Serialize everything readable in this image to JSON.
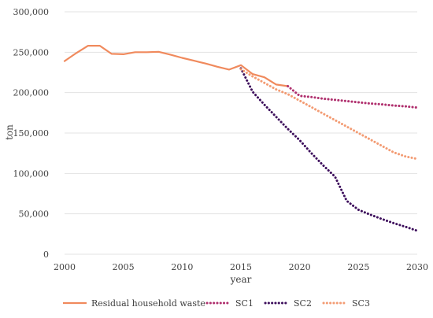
{
  "chart_data": {
    "type": "line",
    "title": "",
    "xlabel": "year",
    "ylabel": "ton",
    "xlim": [
      2000,
      2030
    ],
    "ylim": [
      0,
      300000
    ],
    "x_ticks": [
      "2000",
      "2005",
      "2010",
      "2015",
      "2020",
      "2025",
      "2030"
    ],
    "y_ticks": [
      "0",
      "50,000",
      "100,000",
      "150,000",
      "200,000",
      "250,000",
      "300,000"
    ],
    "grid": "horizontal",
    "legend_position": "bottom",
    "series": [
      {
        "name": "Residual household waste",
        "color": "#f08a5d",
        "style": "solid",
        "points": [
          [
            2000,
            239000
          ],
          [
            2001,
            249000
          ],
          [
            2002,
            258000
          ],
          [
            2003,
            258000
          ],
          [
            2004,
            248000
          ],
          [
            2005,
            247500
          ],
          [
            2006,
            250000
          ],
          [
            2007,
            250000
          ],
          [
            2008,
            250500
          ],
          [
            2009,
            247000
          ],
          [
            2010,
            243000
          ],
          [
            2011,
            239500
          ],
          [
            2012,
            236000
          ],
          [
            2013,
            232000
          ],
          [
            2014,
            228500
          ],
          [
            2015,
            234000
          ],
          [
            2016,
            223000
          ],
          [
            2017,
            219000
          ],
          [
            2018,
            210000
          ],
          [
            2019,
            208000
          ]
        ]
      },
      {
        "name": "SC1",
        "color": "#b0306e",
        "style": "dotted",
        "points": [
          [
            2019,
            208000
          ],
          [
            2020,
            196000
          ],
          [
            2021,
            194500
          ],
          [
            2022,
            192500
          ],
          [
            2023,
            191000
          ],
          [
            2024,
            189500
          ],
          [
            2025,
            188000
          ],
          [
            2026,
            186500
          ],
          [
            2027,
            185500
          ],
          [
            2028,
            184000
          ],
          [
            2029,
            183000
          ],
          [
            2030,
            181500
          ]
        ]
      },
      {
        "name": "SC2",
        "color": "#3d0f5c",
        "style": "dotted",
        "points": [
          [
            2015,
            230000
          ],
          [
            2016,
            201000
          ],
          [
            2017,
            185000
          ],
          [
            2018,
            170000
          ],
          [
            2019,
            155000
          ],
          [
            2020,
            141000
          ],
          [
            2021,
            125000
          ],
          [
            2022,
            110000
          ],
          [
            2023,
            96000
          ],
          [
            2024,
            66000
          ],
          [
            2025,
            55000
          ],
          [
            2026,
            49000
          ],
          [
            2027,
            43500
          ],
          [
            2028,
            38500
          ],
          [
            2029,
            34000
          ],
          [
            2030,
            29000
          ]
        ]
      },
      {
        "name": "SC3",
        "color": "#f39c74",
        "style": "dotted",
        "points": [
          [
            2015,
            229000
          ],
          [
            2016,
            220000
          ],
          [
            2017,
            212000
          ],
          [
            2018,
            204000
          ],
          [
            2019,
            198000
          ],
          [
            2020,
            190000
          ],
          [
            2021,
            182000
          ],
          [
            2022,
            174000
          ],
          [
            2023,
            166000
          ],
          [
            2024,
            158000
          ],
          [
            2025,
            150000
          ],
          [
            2026,
            142000
          ],
          [
            2027,
            134000
          ],
          [
            2028,
            126000
          ],
          [
            2029,
            121000
          ],
          [
            2030,
            118000
          ]
        ]
      }
    ]
  }
}
